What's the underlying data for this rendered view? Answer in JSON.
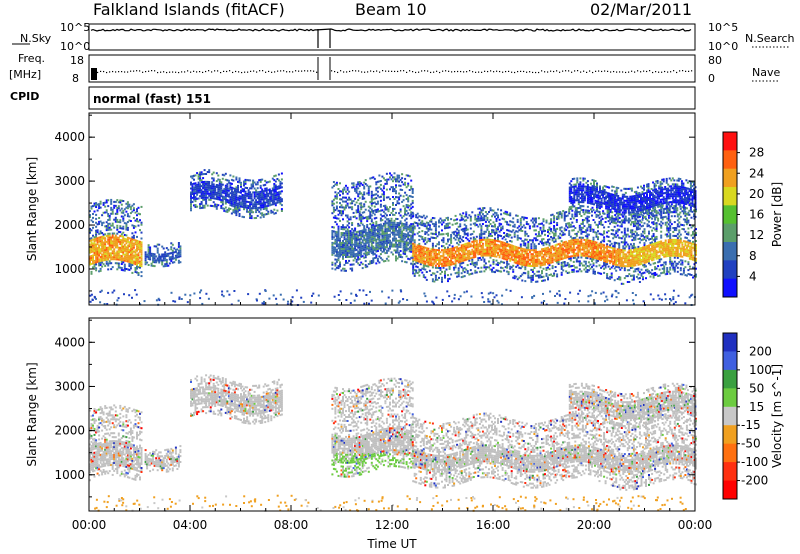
{
  "header": {
    "station": "Falkland Islands (fitACF)",
    "beam": "Beam 10",
    "date": "02/Mar/2011"
  },
  "strips": {
    "nsky_label": "N.Sky",
    "nsky_ticks": [
      "10^5",
      "10^0"
    ],
    "nsearch_label": "N.Search",
    "nsearch_ticks": [
      "10^5",
      "10^0"
    ],
    "freq_label_top": "Freq.",
    "freq_label_unit": "[MHz]",
    "freq_ticks": [
      "18",
      "8"
    ],
    "nave_label": "Nave",
    "nave_ticks": [
      "80",
      "0"
    ],
    "cpid_label": "CPID",
    "cpid_text": "normal (fast) 151"
  },
  "chart_data": [
    {
      "type": "heatmap",
      "title": "",
      "xlabel": "Time UT",
      "ylabel": "Slant Range [km]",
      "x_ticks": [
        "00:00",
        "04:00",
        "08:00",
        "12:00",
        "16:00",
        "20:00",
        "00:00"
      ],
      "y_ticks": [
        1000,
        2000,
        3000,
        4000
      ],
      "ylim": [
        180,
        4550
      ],
      "colorbar_label": "Power [dB]",
      "colorbar_ticks": [
        4,
        8,
        12,
        16,
        20,
        24,
        28
      ],
      "colorbar_range": [
        0,
        32
      ],
      "colors": [
        "#1010ff",
        "#2040c0",
        "#3a6eb0",
        "#5b9e6a",
        "#55c030",
        "#d8d820",
        "#f0a020",
        "#ff6010",
        "#ff1010"
      ],
      "data_gap_hours": [
        9.25,
        9.6
      ],
      "echo_bands": [
        {
          "t_start": 0.0,
          "t_end": 2.1,
          "range_low": 900,
          "range_high": 2500,
          "core_low": 1100,
          "core_high": 1700,
          "core_level": 26
        },
        {
          "t_start": 2.2,
          "t_end": 3.6,
          "range_low": 1200,
          "range_high": 1700,
          "core_low": 1300,
          "core_high": 1500,
          "core_level": 10
        },
        {
          "t_start": 4.0,
          "t_end": 7.6,
          "range_low": 2300,
          "range_high": 3200,
          "core_low": 2500,
          "core_high": 2900,
          "core_level": 8
        },
        {
          "t_start": 9.6,
          "t_end": 12.8,
          "range_low": 1100,
          "range_high": 3100,
          "core_low": 1400,
          "core_high": 2000,
          "core_level": 12
        },
        {
          "t_start": 12.8,
          "t_end": 21.0,
          "range_low": 850,
          "range_high": 2300,
          "core_low": 1200,
          "core_high": 1600,
          "core_level": 27
        },
        {
          "t_start": 21.0,
          "t_end": 24.0,
          "range_low": 800,
          "range_high": 2500,
          "core_low": 1200,
          "core_high": 1600,
          "core_level": 25
        },
        {
          "t_start": 19.0,
          "t_end": 24.0,
          "range_low": 2200,
          "range_high": 3000,
          "core_low": 2400,
          "core_high": 2800,
          "core_level": 7
        }
      ]
    },
    {
      "type": "heatmap",
      "title": "",
      "xlabel": "Time UT",
      "ylabel": "Slant Range [km]",
      "x_ticks": [
        "00:00",
        "04:00",
        "08:00",
        "12:00",
        "16:00",
        "20:00",
        "00:00"
      ],
      "y_ticks": [
        1000,
        2000,
        3000,
        4000
      ],
      "ylim": [
        180,
        4550
      ],
      "colorbar_label": "Velocity [m s^-1]",
      "colorbar_ticks": [
        200,
        100,
        50,
        15,
        -15,
        -50,
        -100,
        -200
      ],
      "colors": [
        "#2030c0",
        "#4060e0",
        "#3aa040",
        "#6ccc40",
        "#c8c8c8",
        "#f0a020",
        "#ff7010",
        "#ff3010",
        "#ff0000"
      ],
      "data_gap_hours": [
        9.25,
        9.6
      ],
      "ground_scatter_color": "#c0c0c0",
      "echo_bands": [
        {
          "t_start": 0.0,
          "t_end": 2.1,
          "range_low": 900,
          "range_high": 2500,
          "core_low": 1100,
          "core_high": 1700,
          "core_level": 0
        },
        {
          "t_start": 2.2,
          "t_end": 3.6,
          "range_low": 1200,
          "range_high": 1700,
          "core_low": 1300,
          "core_high": 1500,
          "core_level": 0
        },
        {
          "t_start": 4.0,
          "t_end": 7.6,
          "range_low": 2300,
          "range_high": 3200,
          "core_low": 2500,
          "core_high": 2900,
          "core_level": 0
        },
        {
          "t_start": 9.6,
          "t_end": 12.8,
          "range_low": 1100,
          "range_high": 3100,
          "core_low": 1400,
          "core_high": 2000,
          "core_level": 0
        },
        {
          "t_start": 12.8,
          "t_end": 21.0,
          "range_low": 850,
          "range_high": 2300,
          "core_low": 1200,
          "core_high": 1600,
          "core_level": 0
        },
        {
          "t_start": 21.0,
          "t_end": 24.0,
          "range_low": 800,
          "range_high": 2500,
          "core_low": 1200,
          "core_high": 1600,
          "core_level": 0
        },
        {
          "t_start": 19.0,
          "t_end": 24.0,
          "range_low": 2200,
          "range_high": 3000,
          "core_low": 2400,
          "core_high": 2800,
          "core_level": 0
        }
      ]
    }
  ]
}
